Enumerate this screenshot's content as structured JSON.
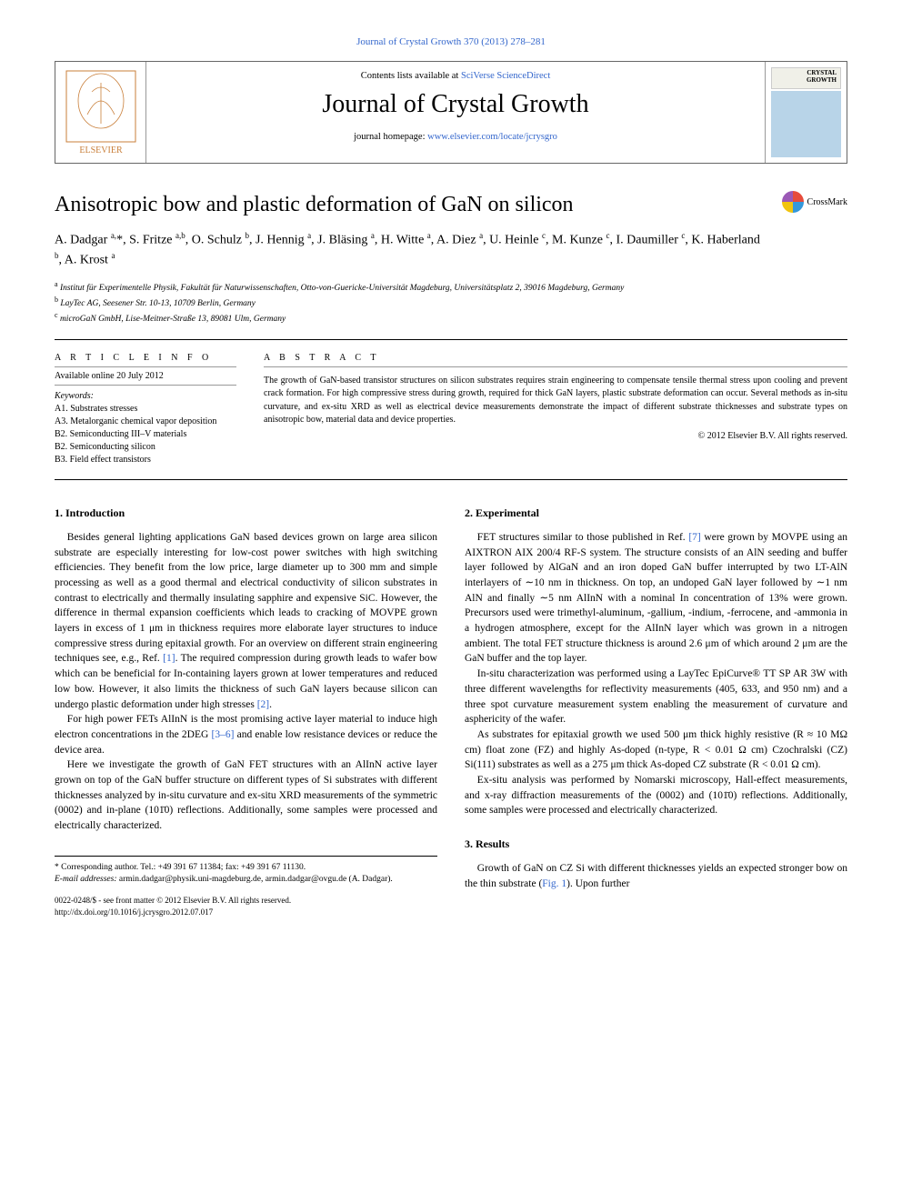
{
  "top_link": "Journal of Crystal Growth 370 (2013) 278–281",
  "header": {
    "contents_prefix": "Contents lists available at ",
    "contents_link": "SciVerse ScienceDirect",
    "journal_name": "Journal of Crystal Growth",
    "homepage_prefix": "journal homepage: ",
    "homepage_link": "www.elsevier.com/locate/jcrysgro",
    "cover_text": "CRYSTAL GROWTH",
    "elsevier_label": "ELSEVIER"
  },
  "crossmark": "CrossMark",
  "title": "Anisotropic bow and plastic deformation of GaN on silicon",
  "authors_html": "A. Dadgar <sup>a,</sup>*, S. Fritze <sup>a,b</sup>, O. Schulz <sup>b</sup>, J. Hennig <sup>a</sup>, J. Bläsing <sup>a</sup>, H. Witte <sup>a</sup>, A. Diez <sup>a</sup>, U. Heinle <sup>c</sup>, M. Kunze <sup>c</sup>, I. Daumiller <sup>c</sup>, K. Haberland <sup>b</sup>, A. Krost <sup>a</sup>",
  "affiliations": {
    "a": "Institut für Experimentelle Physik, Fakultät für Naturwissenschaften, Otto-von-Guericke-Universität Magdeburg, Universitätsplatz 2, 39016 Magdeburg, Germany",
    "b": "LayTec AG, Seesener Str. 10-13, 10709 Berlin, Germany",
    "c": "microGaN GmbH, Lise-Meitner-Straße 13, 89081 Ulm, Germany"
  },
  "article_info": {
    "heading": "A R T I C L E   I N F O",
    "available": "Available online 20 July 2012",
    "keywords_label": "Keywords:",
    "keywords": [
      "A1. Substrates stresses",
      "A3. Metalorganic chemical vapor deposition",
      "B2. Semiconducting III–V materials",
      "B2. Semiconducting silicon",
      "B3. Field effect transistors"
    ]
  },
  "abstract": {
    "heading": "A B S T R A C T",
    "text": "The growth of GaN-based transistor structures on silicon substrates requires strain engineering to compensate tensile thermal stress upon cooling and prevent crack formation. For high compressive stress during growth, required for thick GaN layers, plastic substrate deformation can occur. Several methods as in-situ curvature, and ex-situ XRD as well as electrical device measurements demonstrate the impact of different substrate thicknesses and substrate types on anisotropic bow, material data and device properties.",
    "copyright": "© 2012 Elsevier B.V. All rights reserved."
  },
  "sections": {
    "intro_head": "1. Introduction",
    "intro_paras": [
      "Besides general lighting applications GaN based devices grown on large area silicon substrate are especially interesting for low-cost power switches with high switching efficiencies. They benefit from the low price, large diameter up to 300 mm and simple processing as well as a good thermal and electrical conductivity of silicon substrates in contrast to electrically and thermally insulating sapphire and expensive SiC. However, the difference in thermal expansion coefficients which leads to cracking of MOVPE grown layers in excess of 1 μm in thickness requires more elaborate layer structures to induce compressive stress during epitaxial growth. For an overview on different strain engineering techniques see, e.g., Ref. [1]. The required compression during growth leads to wafer bow which can be beneficial for In-containing layers grown at lower temperatures and reduced low bow. However, it also limits the thickness of such GaN layers because silicon can undergo plastic deformation under high stresses [2].",
      "For high power FETs AlInN is the most promising active layer material to induce high electron concentrations in the 2DEG [3–6] and enable low resistance devices or reduce the device area.",
      "Here we investigate the growth of GaN FET structures with an AlInN active layer grown on top of the GaN buffer structure on different types of Si substrates with different thicknesses analyzed by in-situ curvature and ex-situ XRD measurements of the symmetric (0002) and in-plane (101̄0) reflections. Additionally, some samples were processed and electrically characterized."
    ],
    "exp_head": "2. Experimental",
    "exp_paras": [
      "FET structures similar to those published in Ref. [7] were grown by MOVPE using an AIXTRON AIX 200/4 RF-S system. The structure consists of an AlN seeding and buffer layer followed by AlGaN and an iron doped GaN buffer interrupted by two LT-AlN interlayers of ∼10 nm in thickness. On top, an undoped GaN layer followed by ∼1 nm AlN and finally ∼5 nm AlInN with a nominal In concentration of 13% were grown. Precursors used were trimethyl-aluminum, -gallium, -indium, -ferrocene, and -ammonia in a hydrogen atmosphere, except for the AlInN layer which was grown in a nitrogen ambient. The total FET structure thickness is around 2.6 μm of which around 2 μm are the GaN buffer and the top layer.",
      "In-situ characterization was performed using a LayTec EpiCurve® TT SP AR 3W with three different wavelengths for reflectivity measurements (405, 633, and 950 nm) and a three spot curvature measurement system enabling the measurement of curvature and asphericity of the wafer.",
      "As substrates for epitaxial growth we used 500 μm thick highly resistive (R ≈ 10 MΩ cm) float zone (FZ) and highly As-doped (n-type, R < 0.01 Ω cm) Czochralski (CZ) Si(111) substrates as well as a 275 μm thick As-doped CZ substrate (R < 0.01 Ω cm).",
      "Ex-situ analysis was performed by Nomarski microscopy, Hall-effect measurements, and x-ray diffraction measurements of the (0002) and (101̄0) reflections. Additionally, some samples were processed and electrically characterized."
    ],
    "res_head": "3. Results",
    "res_paras": [
      "Growth of GaN on CZ Si with different thicknesses yields an expected stronger bow on the thin substrate (Fig. 1). Upon further"
    ]
  },
  "footnotes": {
    "corresponding": "* Corresponding author. Tel.: +49 391 67 11384; fax: +49 391 67 11130.",
    "email_label": "E-mail addresses:",
    "emails": "armin.dadgar@physik.uni-magdeburg.de, armin.dadgar@ovgu.de (A. Dadgar).",
    "issn": "0022-0248/$ - see front matter © 2012 Elsevier B.V. All rights reserved.",
    "doi": "http://dx.doi.org/10.1016/j.jcrysgro.2012.07.017"
  },
  "colors": {
    "link": "#3366cc",
    "text": "#000000",
    "border": "#666666",
    "cover_bg": "#b8d4e8"
  }
}
